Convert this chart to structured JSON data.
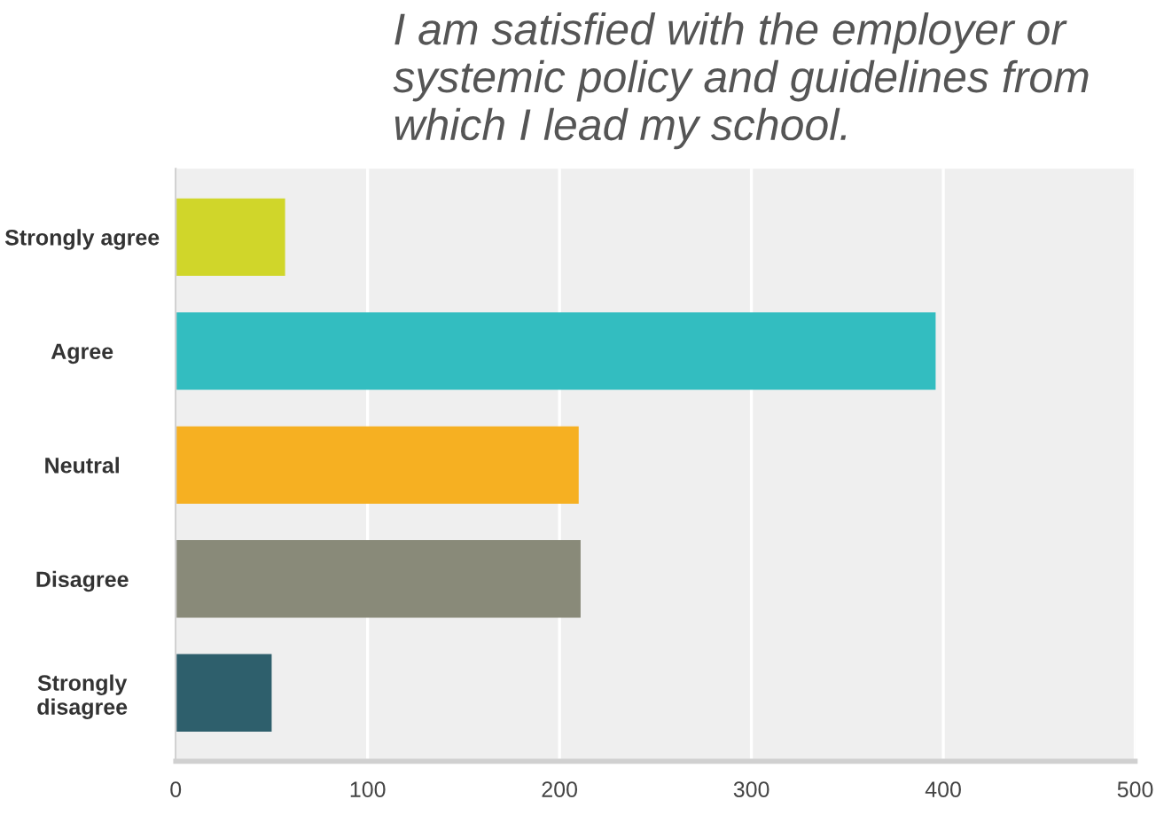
{
  "chart_data": {
    "type": "bar",
    "orientation": "horizontal",
    "title": "I am satisfied with the employer or systemic policy and guidelines from which I lead my school.",
    "categories": [
      "Strongly agree",
      "Agree",
      "Neutral",
      "Disagree",
      "Strongly\ndisagree"
    ],
    "values": [
      57,
      396,
      210,
      211,
      50
    ],
    "colors": [
      "#d0d62a",
      "#33bdc0",
      "#f6b022",
      "#898a79",
      "#2e5f6c"
    ],
    "xlim": [
      0,
      500
    ],
    "xticks": [
      0,
      100,
      200,
      300,
      400,
      500
    ],
    "grid": "x",
    "legend": false
  }
}
